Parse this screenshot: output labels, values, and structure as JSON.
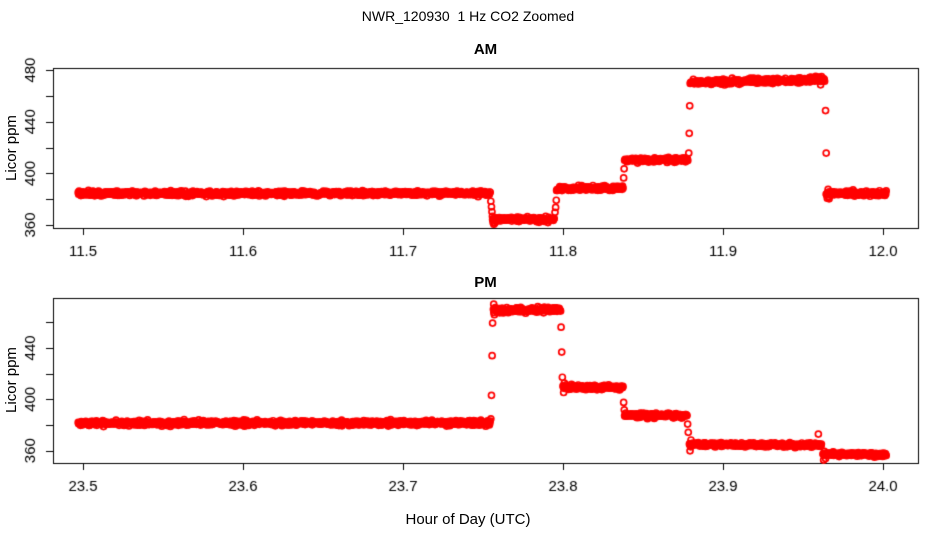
{
  "header": {
    "title": "NWR_120930  1 Hz CO2 Zoomed"
  },
  "x_axis_label": "Hour of Day (UTC)",
  "chart_data": [
    {
      "type": "scatter",
      "title": "AM",
      "ylabel": "Licor ppm",
      "point_style": {
        "symbol": "open-circle",
        "color": "#FF0000"
      },
      "point_color": "#FF0000",
      "sample_rate_hz": 1,
      "grid": false,
      "legend": "none",
      "xlim": [
        11.48125,
        12.021875
      ],
      "ylim": [
        357.7,
        481.6
      ],
      "x_tick_values": [
        11.5,
        11.6,
        11.7,
        11.8,
        11.9,
        12.0
      ],
      "x_tick_labels": [
        "11.5",
        "11.6",
        "11.7",
        "11.8",
        "11.9",
        "12.0"
      ],
      "y_tick_values": [
        360,
        380,
        400,
        420,
        440,
        460,
        480
      ],
      "y_tick_labels": [
        "360",
        "",
        "400",
        "",
        "440",
        "",
        "480"
      ],
      "segments": [
        {
          "x0": 11.497,
          "x1": 11.7545,
          "y0": 384.3,
          "y1": 384.6,
          "sd": 0.9
        },
        {
          "x0": 11.756,
          "x1": 11.7945,
          "y0": 364.6,
          "y1": 364.2,
          "sd": 0.85
        },
        {
          "x0": 11.796,
          "x1": 11.8375,
          "y0": 388.3,
          "y1": 388.6,
          "sd": 0.85
        },
        {
          "x0": 11.8385,
          "x1": 11.878,
          "y0": 410.2,
          "y1": 410.6,
          "sd": 0.85
        },
        {
          "x0": 11.8795,
          "x1": 11.9635,
          "y0": 470.3,
          "y1": 472.6,
          "sd": 0.95
        },
        {
          "x0": 11.9645,
          "x1": 12.002,
          "y0": 384.5,
          "y1": 384.4,
          "sd": 0.9
        }
      ],
      "extra_points": [
        [
          11.7549,
          378.4
        ],
        [
          11.7553,
          374.1
        ],
        [
          11.7556,
          370.2
        ],
        [
          11.7559,
          366.8
        ],
        [
          11.7563,
          362.0
        ],
        [
          11.7568,
          360.7
        ],
        [
          11.7574,
          361.6
        ],
        [
          11.795,
          369.8
        ],
        [
          11.7954,
          373.6
        ],
        [
          11.7958,
          379.2
        ],
        [
          11.8379,
          396.5
        ],
        [
          11.8382,
          403.5
        ],
        [
          11.8786,
          415.7
        ],
        [
          11.8789,
          431.0
        ],
        [
          11.8792,
          452.3
        ],
        [
          11.96,
          474.4
        ],
        [
          11.961,
          468.6
        ],
        [
          11.9616,
          474.9
        ],
        [
          11.9641,
          448.6
        ],
        [
          11.9645,
          415.7
        ],
        [
          11.9652,
          380.8
        ],
        [
          11.9657,
          387.6
        ],
        [
          11.9663,
          380.3
        ]
      ]
    },
    {
      "type": "scatter",
      "title": "PM",
      "ylabel": "Licor ppm",
      "point_style": {
        "symbol": "open-circle",
        "color": "#FF0000"
      },
      "point_color": "#FF0000",
      "sample_rate_hz": 1,
      "grid": false,
      "legend": "none",
      "xlim": [
        23.48125,
        24.021875
      ],
      "ylim": [
        350.4,
        478.9
      ],
      "x_tick_values": [
        23.5,
        23.6,
        23.7,
        23.8,
        23.9,
        24.0
      ],
      "x_tick_labels": [
        "23.5",
        "23.6",
        "23.7",
        "23.8",
        "23.9",
        "24.0"
      ],
      "y_tick_values": [
        360,
        380,
        400,
        420,
        440,
        460
      ],
      "y_tick_labels": [
        "360",
        "",
        "400",
        "",
        "440",
        ""
      ],
      "segments": [
        {
          "x0": 23.497,
          "x1": 23.7545,
          "y0": 381.4,
          "y1": 381.6,
          "sd": 0.9
        },
        {
          "x0": 23.7565,
          "x1": 23.7985,
          "y0": 469.4,
          "y1": 469.8,
          "sd": 1.0
        },
        {
          "x0": 23.8,
          "x1": 23.8375,
          "y0": 409.6,
          "y1": 409.2,
          "sd": 0.85
        },
        {
          "x0": 23.8385,
          "x1": 23.8775,
          "y0": 387.6,
          "y1": 387.3,
          "sd": 0.85
        },
        {
          "x0": 23.879,
          "x1": 23.9615,
          "y0": 364.9,
          "y1": 364.2,
          "sd": 0.85
        },
        {
          "x0": 23.9625,
          "x1": 24.002,
          "y0": 357.3,
          "y1": 356.8,
          "sd": 0.8
        }
      ],
      "extra_points": [
        [
          23.7549,
          384.8
        ],
        [
          23.7553,
          403.1
        ],
        [
          23.7557,
          434.0
        ],
        [
          23.756,
          459.4
        ],
        [
          23.7567,
          474.1
        ],
        [
          23.7571,
          465.9
        ],
        [
          23.7576,
          471.4
        ],
        [
          23.7988,
          456.2
        ],
        [
          23.7992,
          436.8
        ],
        [
          23.7996,
          417.2
        ],
        [
          23.8004,
          405.3
        ],
        [
          23.8009,
          412.7
        ],
        [
          23.8379,
          397.6
        ],
        [
          23.8383,
          391.8
        ],
        [
          23.8779,
          380.7
        ],
        [
          23.8783,
          374.3
        ],
        [
          23.8794,
          359.9
        ],
        [
          23.88,
          368.3
        ],
        [
          23.9596,
          372.9
        ],
        [
          23.9629,
          352.7
        ],
        [
          23.9634,
          359.4
        ],
        [
          23.9641,
          353.9
        ]
      ]
    }
  ]
}
